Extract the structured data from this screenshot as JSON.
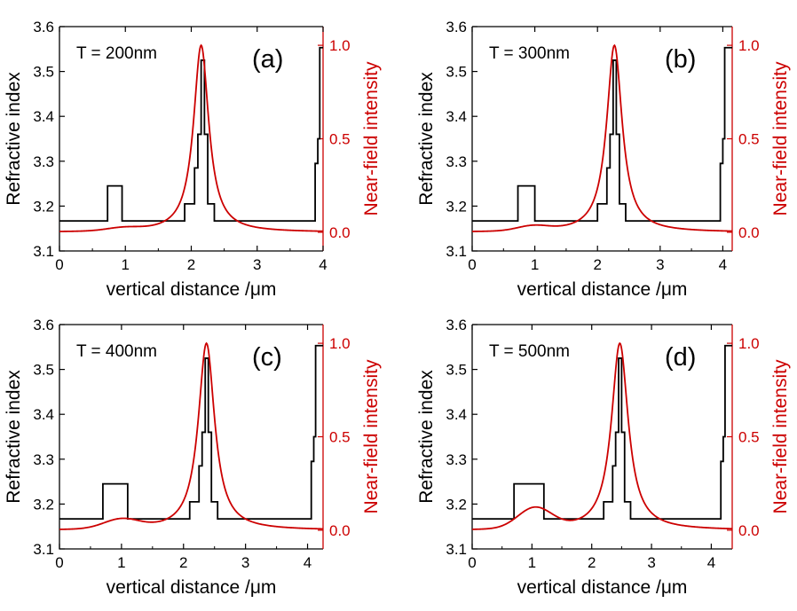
{
  "colors": {
    "refractive": "#000000",
    "intensity": "#cc0000",
    "axis": "#000000"
  },
  "chart_data": [
    {
      "type": "line",
      "panel_label": "(a)",
      "annotation": "T = 200nm",
      "xlabel": "vertical distance /μm",
      "ylabel_left": "Refractive index",
      "ylabel_right": "Near-field intensity",
      "xlim": [
        0,
        4.0
      ],
      "ylim_left": [
        3.1,
        3.6
      ],
      "ylim_right": [
        -0.1,
        1.1
      ],
      "xticks": [
        0,
        1,
        2,
        3,
        4
      ],
      "yticks_left": [
        3.1,
        3.2,
        3.3,
        3.4,
        3.5,
        3.6
      ],
      "yticks_right": [
        0.0,
        0.5,
        1.0
      ],
      "ytick_labels_right": [
        "0.0",
        "0.5",
        "1.0"
      ],
      "grid": false,
      "series": [
        {
          "axis": "left",
          "x": [
            0,
            0.73,
            0.73,
            0.95,
            0.95,
            1.9,
            1.9,
            2.05,
            2.05,
            2.1,
            2.1,
            2.15,
            2.15,
            2.2,
            2.2,
            2.25,
            2.25,
            2.35,
            2.35,
            3.88,
            3.88,
            3.92,
            3.92,
            3.95,
            3.95,
            4.0
          ],
          "y": [
            3.167,
            3.167,
            3.245,
            3.245,
            3.167,
            3.167,
            3.205,
            3.205,
            3.285,
            3.285,
            3.36,
            3.36,
            3.525,
            3.525,
            3.36,
            3.36,
            3.205,
            3.205,
            3.167,
            3.167,
            3.295,
            3.295,
            3.35,
            3.35,
            3.553,
            3.553
          ]
        },
        {
          "axis": "right",
          "center": 2.15,
          "width": 0.28,
          "baseline": 0.0,
          "bump_center": 0.97,
          "bump_height": 0.015,
          "bump_width": 0.35
        }
      ]
    },
    {
      "type": "line",
      "panel_label": "(b)",
      "annotation": "T = 300nm",
      "xlabel": "vertical distance /μm",
      "ylabel_left": "Refractive index",
      "ylabel_right": "Near-field intensity",
      "xlim": [
        0,
        4.15
      ],
      "ylim_left": [
        3.1,
        3.6
      ],
      "ylim_right": [
        -0.1,
        1.1
      ],
      "xticks": [
        0,
        1,
        2,
        3,
        4
      ],
      "yticks_left": [
        3.1,
        3.2,
        3.3,
        3.4,
        3.5,
        3.6
      ],
      "yticks_right": [
        0.0,
        0.5,
        1.0
      ],
      "ytick_labels_right": [
        "0.0",
        "0.5",
        "1.0"
      ],
      "grid": false,
      "series": [
        {
          "axis": "left",
          "x": [
            0,
            0.73,
            0.73,
            1.0,
            1.0,
            2.0,
            2.0,
            2.15,
            2.15,
            2.2,
            2.2,
            2.25,
            2.25,
            2.3,
            2.3,
            2.35,
            2.35,
            2.45,
            2.45,
            3.96,
            3.96,
            4.0,
            4.0,
            4.03,
            4.03,
            4.15
          ],
          "y": [
            3.167,
            3.167,
            3.245,
            3.245,
            3.167,
            3.167,
            3.205,
            3.205,
            3.285,
            3.285,
            3.36,
            3.36,
            3.525,
            3.525,
            3.36,
            3.36,
            3.205,
            3.205,
            3.167,
            3.167,
            3.295,
            3.295,
            3.35,
            3.35,
            3.553,
            3.553
          ]
        },
        {
          "axis": "right",
          "center": 2.27,
          "width": 0.3,
          "baseline": 0.0,
          "bump_center": 0.97,
          "bump_height": 0.025,
          "bump_width": 0.35
        }
      ]
    },
    {
      "type": "line",
      "panel_label": "(c)",
      "annotation": "T = 400nm",
      "xlabel": "vertical distance /μm",
      "ylabel_left": "Refractive index",
      "ylabel_right": "Near-field intensity",
      "xlim": [
        0,
        4.25
      ],
      "ylim_left": [
        3.1,
        3.6
      ],
      "ylim_right": [
        -0.1,
        1.1
      ],
      "xticks": [
        0,
        1,
        2,
        3,
        4
      ],
      "yticks_left": [
        3.1,
        3.2,
        3.3,
        3.4,
        3.5,
        3.6
      ],
      "yticks_right": [
        0.0,
        0.5,
        1.0
      ],
      "ytick_labels_right": [
        "0.0",
        "0.5",
        "1.0"
      ],
      "grid": false,
      "series": [
        {
          "axis": "left",
          "x": [
            0,
            0.7,
            0.7,
            1.1,
            1.1,
            2.1,
            2.1,
            2.25,
            2.25,
            2.3,
            2.3,
            2.35,
            2.35,
            2.4,
            2.4,
            2.45,
            2.45,
            2.55,
            2.55,
            4.06,
            4.06,
            4.1,
            4.1,
            4.13,
            4.13,
            4.25
          ],
          "y": [
            3.167,
            3.167,
            3.245,
            3.245,
            3.167,
            3.167,
            3.205,
            3.205,
            3.285,
            3.285,
            3.36,
            3.36,
            3.525,
            3.525,
            3.36,
            3.36,
            3.205,
            3.205,
            3.167,
            3.167,
            3.295,
            3.295,
            3.35,
            3.35,
            3.553,
            3.553
          ]
        },
        {
          "axis": "right",
          "center": 2.37,
          "width": 0.32,
          "baseline": 0.0,
          "bump_center": 1.0,
          "bump_height": 0.05,
          "bump_width": 0.4
        }
      ]
    },
    {
      "type": "line",
      "panel_label": "(d)",
      "annotation": "T = 500nm",
      "xlabel": "vertical distance /μm",
      "ylabel_left": "Refractive index",
      "ylabel_right": "Near-field intensity",
      "xlim": [
        0,
        4.35
      ],
      "ylim_left": [
        3.1,
        3.6
      ],
      "ylim_right": [
        -0.1,
        1.1
      ],
      "xticks": [
        0,
        1,
        2,
        3,
        4
      ],
      "yticks_left": [
        3.1,
        3.2,
        3.3,
        3.4,
        3.5,
        3.6
      ],
      "yticks_right": [
        0.0,
        0.5,
        1.0
      ],
      "ytick_labels_right": [
        "0.0",
        "0.5",
        "1.0"
      ],
      "grid": false,
      "series": [
        {
          "axis": "left",
          "x": [
            0,
            0.7,
            0.7,
            1.2,
            1.2,
            2.2,
            2.2,
            2.35,
            2.35,
            2.4,
            2.4,
            2.45,
            2.45,
            2.5,
            2.5,
            2.55,
            2.55,
            2.65,
            2.65,
            4.16,
            4.16,
            4.2,
            4.2,
            4.23,
            4.23,
            4.35
          ],
          "y": [
            3.167,
            3.167,
            3.245,
            3.245,
            3.167,
            3.167,
            3.205,
            3.205,
            3.285,
            3.285,
            3.36,
            3.36,
            3.525,
            3.525,
            3.36,
            3.36,
            3.205,
            3.205,
            3.167,
            3.167,
            3.295,
            3.295,
            3.35,
            3.35,
            3.553,
            3.553
          ]
        },
        {
          "axis": "right",
          "center": 2.47,
          "width": 0.34,
          "baseline": 0.0,
          "bump_center": 1.05,
          "bump_height": 0.11,
          "bump_width": 0.4
        }
      ]
    }
  ]
}
